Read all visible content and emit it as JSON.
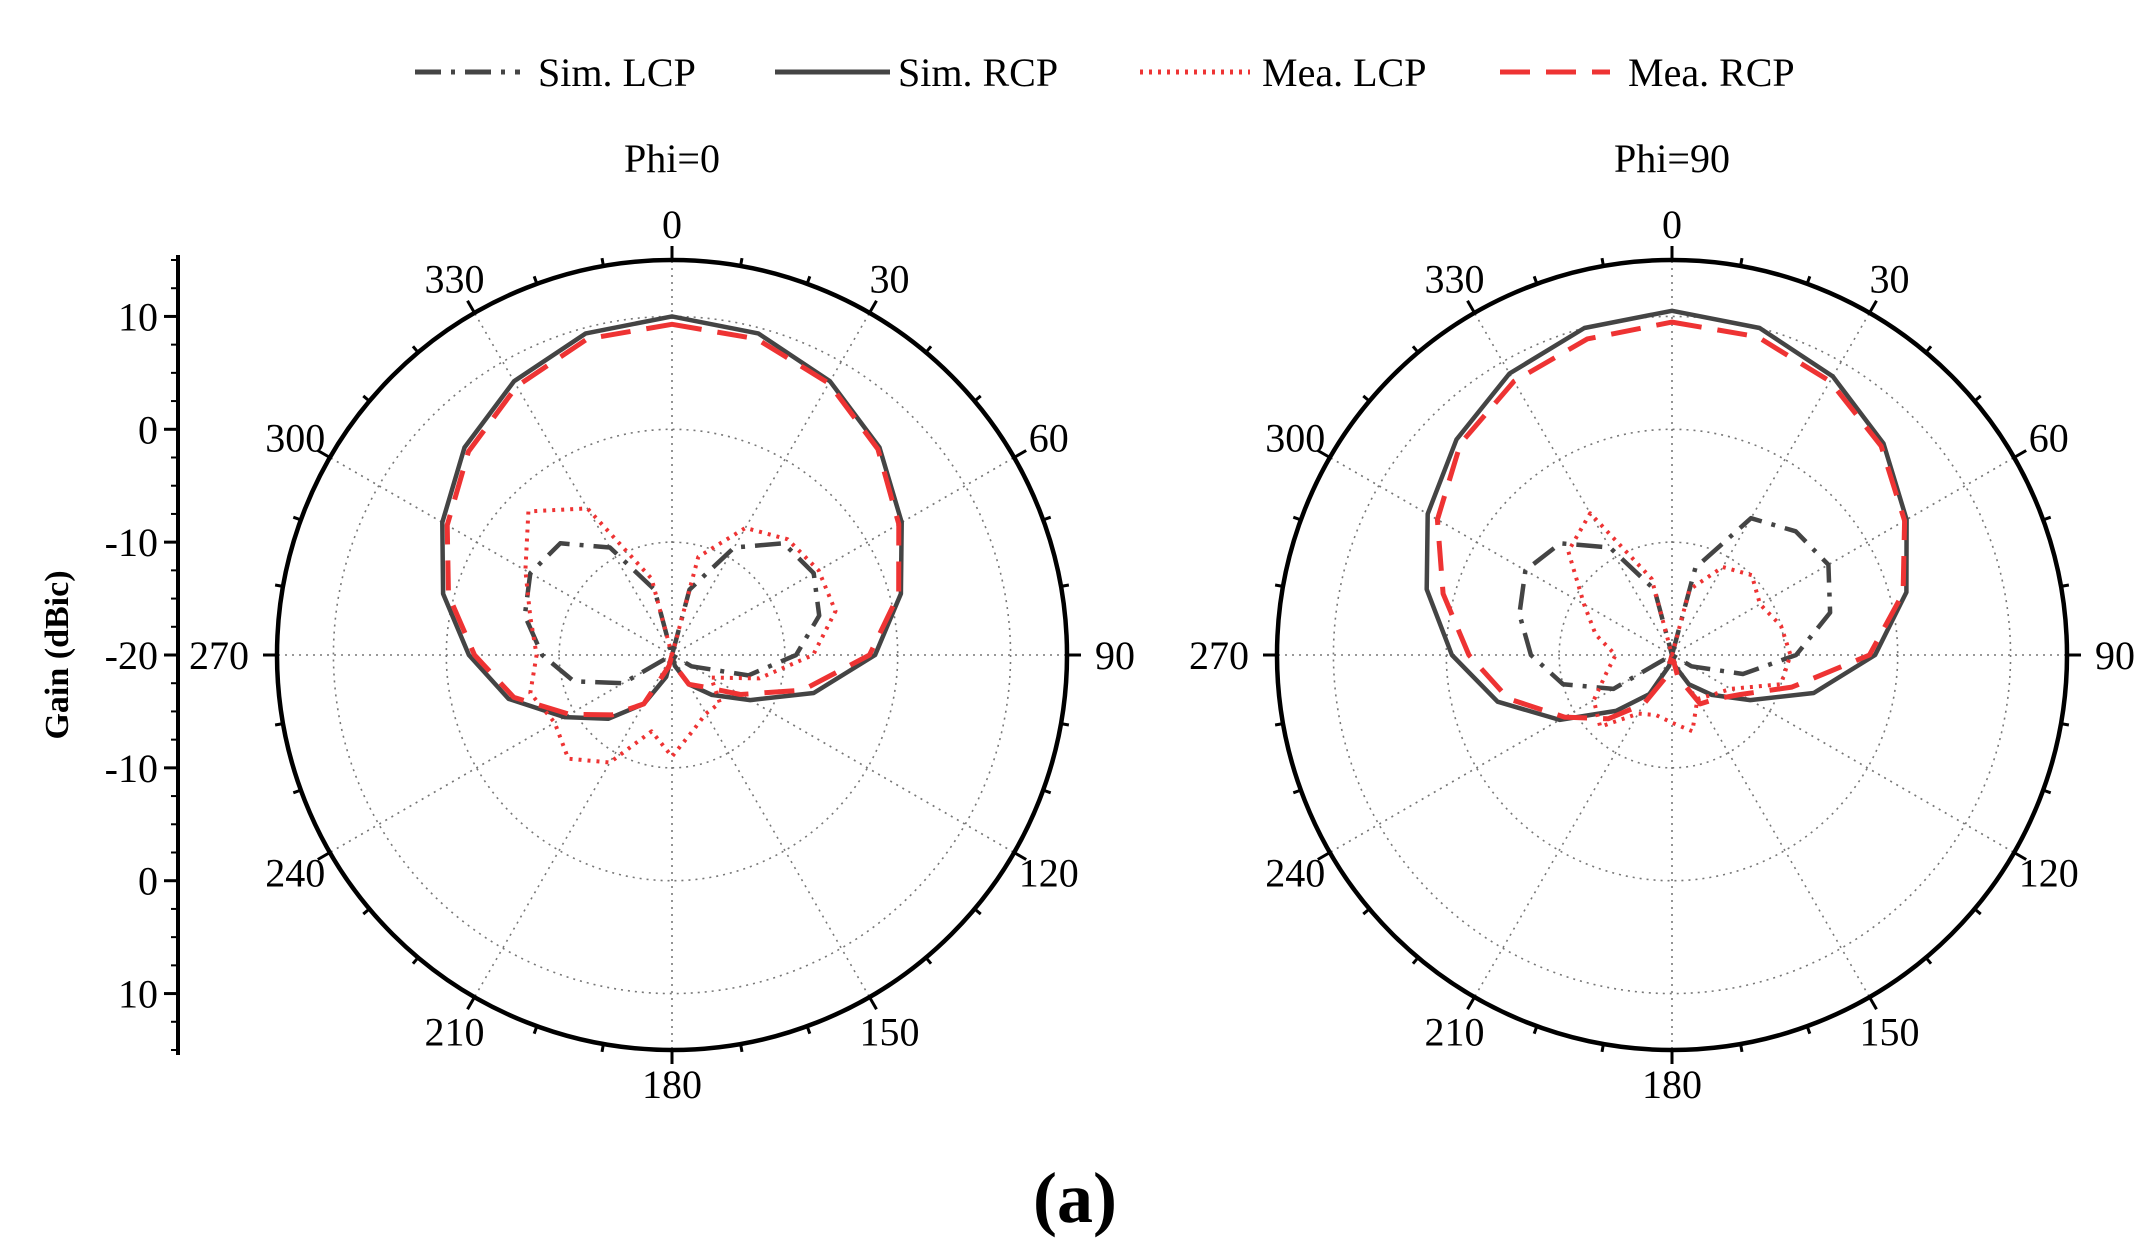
{
  "figure": {
    "caption": "(a)",
    "y_axis_label": "Gain (dBic)",
    "y_axis_ticks": [
      "10",
      "0",
      "-10",
      "-20",
      "-10",
      "0",
      "10"
    ]
  },
  "legend": [
    {
      "name": "Sim. LCP",
      "color": "#444444",
      "style": "dashdot"
    },
    {
      "name": "Sim. RCP",
      "color": "#444444",
      "style": "solid"
    },
    {
      "name": "Mea. LCP",
      "color": "#ee3333",
      "style": "dotted"
    },
    {
      "name": "Mea. RCP",
      "color": "#ee3333",
      "style": "dashed"
    }
  ],
  "chart_data": [
    {
      "type": "polar-line",
      "title": "Phi=0",
      "radial_range_dB": [
        -20,
        15
      ],
      "grid_rings_dB": [
        -10,
        0,
        10
      ],
      "angle_ticks_deg": [
        0,
        30,
        60,
        90,
        120,
        150,
        180,
        210,
        240,
        270,
        300,
        330
      ],
      "angle_unit": "deg",
      "value_unit": "dBic",
      "series": [
        {
          "name": "Sim. RCP",
          "points": [
            [
              0,
              10
            ],
            [
              15,
              9.5
            ],
            [
              30,
              8
            ],
            [
              45,
              6
            ],
            [
              60,
              3.5
            ],
            [
              75,
              1
            ],
            [
              90,
              -2
            ],
            [
              105,
              -7
            ],
            [
              120,
              -12
            ],
            [
              135,
              -15
            ],
            [
              150,
              -17
            ],
            [
              165,
              -19
            ],
            [
              180,
              -20
            ],
            [
              195,
              -18
            ],
            [
              210,
              -15
            ],
            [
              225,
              -12
            ],
            [
              240,
              -9
            ],
            [
              255,
              -5
            ],
            [
              270,
              -2
            ],
            [
              285,
              1
            ],
            [
              300,
              3.5
            ],
            [
              315,
              6
            ],
            [
              330,
              8
            ],
            [
              345,
              9.5
            ]
          ]
        },
        {
          "name": "Mea. RCP",
          "points": [
            [
              0,
              9.3
            ],
            [
              15,
              9
            ],
            [
              30,
              7.8
            ],
            [
              45,
              5.8
            ],
            [
              60,
              3.2
            ],
            [
              75,
              0.8
            ],
            [
              90,
              -2.5
            ],
            [
              105,
              -8
            ],
            [
              120,
              -13
            ],
            [
              135,
              -16
            ],
            [
              150,
              -17
            ],
            [
              165,
              -19
            ],
            [
              180,
              -20
            ],
            [
              195,
              -19
            ],
            [
              210,
              -15
            ],
            [
              225,
              -12.5
            ],
            [
              240,
              -9.5
            ],
            [
              255,
              -5.5
            ],
            [
              270,
              -2.5
            ],
            [
              285,
              0.5
            ],
            [
              300,
              3
            ],
            [
              315,
              5.5
            ],
            [
              330,
              7.5
            ],
            [
              345,
              9
            ]
          ]
        },
        {
          "name": "Sim. LCP",
          "points": [
            [
              0,
              -20
            ],
            [
              15,
              -14
            ],
            [
              30,
              -9
            ],
            [
              45,
              -6
            ],
            [
              60,
              -5.5
            ],
            [
              75,
              -6.5
            ],
            [
              90,
              -9
            ],
            [
              105,
              -13
            ],
            [
              120,
              -18
            ],
            [
              135,
              -20
            ],
            [
              180,
              -20
            ],
            [
              225,
              -20
            ],
            [
              240,
              -15
            ],
            [
              255,
              -11
            ],
            [
              270,
              -8.5
            ],
            [
              285,
              -6.5
            ],
            [
              300,
              -5.5
            ],
            [
              315,
              -6
            ],
            [
              330,
              -9
            ],
            [
              345,
              -14
            ]
          ]
        },
        {
          "name": "Mea. LCP",
          "points": [
            [
              0,
              -20
            ],
            [
              15,
              -11
            ],
            [
              30,
              -7
            ],
            [
              45,
              -5.5
            ],
            [
              60,
              -5
            ],
            [
              75,
              -5
            ],
            [
              90,
              -7.5
            ],
            [
              105,
              -12
            ],
            [
              120,
              -16
            ],
            [
              135,
              -14
            ],
            [
              150,
              -14
            ],
            [
              165,
              -13
            ],
            [
              180,
              -11
            ],
            [
              195,
              -13
            ],
            [
              210,
              -9
            ],
            [
              225,
              -7
            ],
            [
              240,
              -8
            ],
            [
              255,
              -7
            ],
            [
              270,
              -8
            ],
            [
              285,
              -7
            ],
            [
              300,
              -5
            ],
            [
              315,
              -2
            ],
            [
              330,
              -5
            ],
            [
              345,
              -13
            ]
          ]
        }
      ]
    },
    {
      "type": "polar-line",
      "title": "Phi=90",
      "radial_range_dB": [
        -20,
        15
      ],
      "grid_rings_dB": [
        -10,
        0,
        10
      ],
      "angle_ticks_deg": [
        0,
        30,
        60,
        90,
        120,
        150,
        180,
        210,
        240,
        270,
        300,
        330
      ],
      "angle_unit": "deg",
      "value_unit": "dBic",
      "series": [
        {
          "name": "Sim. RCP",
          "points": [
            [
              0,
              10.5
            ],
            [
              15,
              10
            ],
            [
              30,
              8.5
            ],
            [
              45,
              6.5
            ],
            [
              60,
              4
            ],
            [
              75,
              1.5
            ],
            [
              90,
              -2
            ],
            [
              105,
              -7
            ],
            [
              120,
              -12
            ],
            [
              135,
              -15
            ],
            [
              150,
              -17
            ],
            [
              165,
              -19
            ],
            [
              180,
              -20
            ],
            [
              195,
              -19
            ],
            [
              210,
              -16
            ],
            [
              225,
              -13
            ],
            [
              240,
              -8.5
            ],
            [
              255,
              -4
            ],
            [
              270,
              -0.5
            ],
            [
              285,
              2.5
            ],
            [
              300,
              5
            ],
            [
              315,
              7
            ],
            [
              330,
              8.8
            ],
            [
              345,
              10
            ]
          ]
        },
        {
          "name": "Mea. RCP",
          "points": [
            [
              0,
              9.5
            ],
            [
              15,
              9.2
            ],
            [
              30,
              8
            ],
            [
              45,
              6.2
            ],
            [
              60,
              3.8
            ],
            [
              75,
              1.2
            ],
            [
              90,
              -2.5
            ],
            [
              105,
              -9
            ],
            [
              120,
              -13
            ],
            [
              135,
              -14.5
            ],
            [
              150,
              -15
            ],
            [
              165,
              -18
            ],
            [
              180,
              -20
            ],
            [
              195,
              -18
            ],
            [
              210,
              -15
            ],
            [
              225,
              -12
            ],
            [
              240,
              -9
            ],
            [
              255,
              -5
            ],
            [
              270,
              -2
            ],
            [
              285,
              1
            ],
            [
              300,
              4
            ],
            [
              315,
              6.5
            ],
            [
              330,
              8
            ],
            [
              345,
              9
            ]
          ]
        },
        {
          "name": "Sim. LCP",
          "points": [
            [
              0,
              -20
            ],
            [
              15,
              -12
            ],
            [
              30,
              -6
            ],
            [
              45,
              -4.5
            ],
            [
              60,
              -4
            ],
            [
              75,
              -5.5
            ],
            [
              90,
              -9
            ],
            [
              105,
              -13.5
            ],
            [
              120,
              -18
            ],
            [
              135,
              -20
            ],
            [
              180,
              -20
            ],
            [
              225,
              -20
            ],
            [
              240,
              -14
            ],
            [
              255,
              -10
            ],
            [
              270,
              -7.5
            ],
            [
              285,
              -6
            ],
            [
              300,
              -5
            ],
            [
              315,
              -6
            ],
            [
              330,
              -9
            ],
            [
              345,
              -14
            ]
          ]
        },
        {
          "name": "Mea. LCP",
          "points": [
            [
              0,
              -20
            ],
            [
              15,
              -14
            ],
            [
              30,
              -11
            ],
            [
              45,
              -10
            ],
            [
              60,
              -11
            ],
            [
              75,
              -10
            ],
            [
              90,
              -9.5
            ],
            [
              105,
              -10
            ],
            [
              120,
              -14
            ],
            [
              135,
              -15
            ],
            [
              150,
              -15.5
            ],
            [
              165,
              -13
            ],
            [
              180,
              -14
            ],
            [
              195,
              -14.5
            ],
            [
              210,
              -14
            ],
            [
              225,
              -11
            ],
            [
              240,
              -12
            ],
            [
              255,
              -14
            ],
            [
              270,
              -15
            ],
            [
              285,
              -13
            ],
            [
              300,
              -11
            ],
            [
              315,
              -7
            ],
            [
              330,
              -5.5
            ],
            [
              345,
              -13
            ]
          ]
        }
      ]
    }
  ]
}
